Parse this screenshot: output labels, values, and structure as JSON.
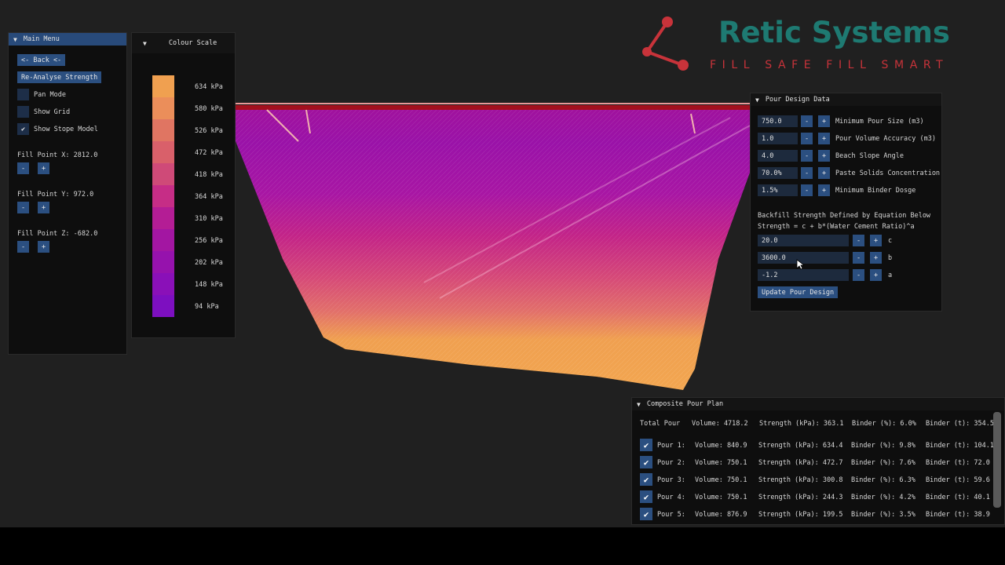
{
  "main_menu": {
    "title": "Main Menu",
    "back_label": "<- Back <-",
    "reanalyse_label": "Re-Analyse Strength",
    "toggles": [
      {
        "label": "Pan Mode",
        "checked": false
      },
      {
        "label": "Show Grid",
        "checked": false
      },
      {
        "label": "Show Stope Model",
        "checked": true
      }
    ],
    "fill_points": [
      {
        "label": "Fill Point X: 2812.0"
      },
      {
        "label": "Fill Point Y: 972.0"
      },
      {
        "label": "Fill Point Z: -682.0"
      }
    ],
    "minus": "-",
    "plus": "+"
  },
  "colour_scale": {
    "title": "Colour Scale",
    "entries": [
      {
        "label": "634 kPa",
        "color": "#f0a050"
      },
      {
        "label": "580 kPa",
        "color": "#eb8e5a"
      },
      {
        "label": "526 kPa",
        "color": "#e07562"
      },
      {
        "label": "472 kPa",
        "color": "#d9606a"
      },
      {
        "label": "418 kPa",
        "color": "#cf4a78"
      },
      {
        "label": "364 kPa",
        "color": "#c62d86"
      },
      {
        "label": "310 kPa",
        "color": "#b41d95"
      },
      {
        "label": "256 kPa",
        "color": "#a316a2"
      },
      {
        "label": "202 kPa",
        "color": "#9612ad"
      },
      {
        "label": "148 kPa",
        "color": "#8a10b8"
      },
      {
        "label": "94 kPa",
        "color": "#7d0fc0"
      }
    ]
  },
  "logo": {
    "name": "Retic Systems",
    "tagline": "FILL SAFE FILL SMART",
    "name_color": "#1e7a72",
    "tagline_color": "#c8333a"
  },
  "pour_design": {
    "title": "Pour Design Data",
    "fields": [
      {
        "value": "750.0",
        "label": "Minimum Pour Size (m3)"
      },
      {
        "value": "1.0",
        "label": "Pour Volume Accuracy (m3)"
      },
      {
        "value": "4.0",
        "label": "Beach Slope Angle"
      },
      {
        "value": "70.0%",
        "label": "Paste Solids Concentration"
      },
      {
        "value": "1.5%",
        "label": "Minimum Binder Dosge"
      }
    ],
    "equation_title": "Backfill Strength Defined by Equation Below",
    "equation": "Strength = c + b*(Water Cement Ratio)^a",
    "coefficients": [
      {
        "value": "20.0",
        "label": "c"
      },
      {
        "value": "3600.0",
        "label": "b"
      },
      {
        "value": "-1.2",
        "label": "a"
      }
    ],
    "update_label": "Update Pour Design",
    "minus": "-",
    "plus": "+"
  },
  "composite": {
    "title": "Composite Pour Plan",
    "total": {
      "name": "Total Pour",
      "volume": "Volume: 4718.2",
      "strength": "Strength (kPa): 363.1",
      "binder_pct": "Binder (%): 6.0%",
      "binder_t": "Binder (t): 354.5"
    },
    "pours": [
      {
        "name": "Pour 1:",
        "volume": "Volume: 840.9",
        "strength": "Strength (kPa): 634.4",
        "binder_pct": "Binder (%): 9.8%",
        "binder_t": "Binder (t): 104.1",
        "checked": true
      },
      {
        "name": "Pour 2:",
        "volume": "Volume: 750.1",
        "strength": "Strength (kPa): 472.7",
        "binder_pct": "Binder (%): 7.6%",
        "binder_t": "Binder (t): 72.0",
        "checked": true
      },
      {
        "name": "Pour 3:",
        "volume": "Volume: 750.1",
        "strength": "Strength (kPa): 300.8",
        "binder_pct": "Binder (%): 6.3%",
        "binder_t": "Binder (t): 59.6",
        "checked": true
      },
      {
        "name": "Pour 4:",
        "volume": "Volume: 750.1",
        "strength": "Strength (kPa): 244.3",
        "binder_pct": "Binder (%): 4.2%",
        "binder_t": "Binder (t): 40.1",
        "checked": true
      },
      {
        "name": "Pour 5:",
        "volume": "Volume: 876.9",
        "strength": "Strength (kPa): 199.5",
        "binder_pct": "Binder (%): 3.5%",
        "binder_t": "Binder (t): 38.9",
        "checked": true
      }
    ]
  }
}
